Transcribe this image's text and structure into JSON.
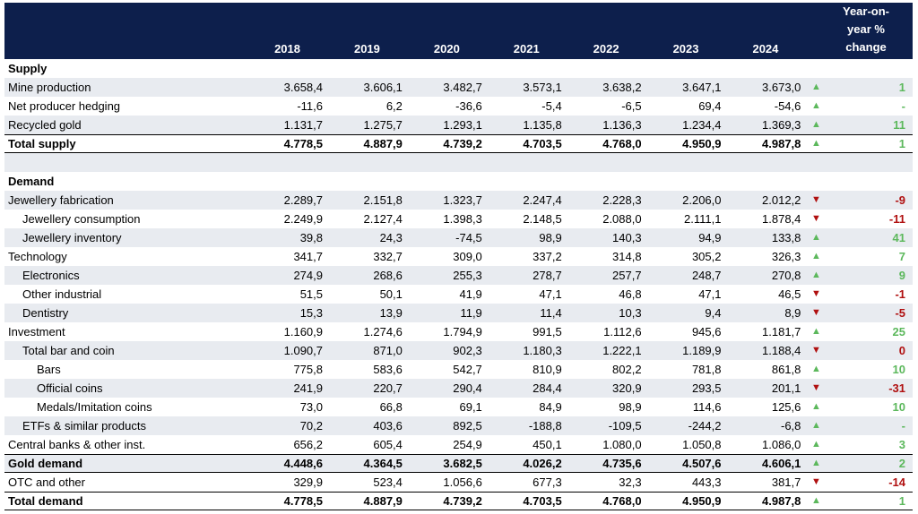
{
  "table": {
    "columns": [
      "2018",
      "2019",
      "2020",
      "2021",
      "2022",
      "2023",
      "2024"
    ],
    "change_header": "Year-on-year % change",
    "sections": [
      {
        "title": "Supply",
        "rows": [
          {
            "label": "Mine production",
            "values": [
              "3.658,4",
              "3.606,1",
              "3.482,7",
              "3.573,1",
              "3.638,2",
              "3.647,1",
              "3.673,0"
            ],
            "arrow": "▲",
            "change": "1"
          },
          {
            "label": "Net producer hedging",
            "values": [
              "-11,6",
              "6,2",
              "-36,6",
              "-5,4",
              "-6,5",
              "69,4",
              "-54,6"
            ],
            "arrow": "▲",
            "change": "-"
          },
          {
            "label": "Recycled gold",
            "values": [
              "1.131,7",
              "1.275,7",
              "1.293,1",
              "1.135,8",
              "1.136,3",
              "1.234,4",
              "1.369,3"
            ],
            "arrow": "▲",
            "change": "11"
          },
          {
            "label": "Total supply",
            "values": [
              "4.778,5",
              "4.887,9",
              "4.739,2",
              "4.703,5",
              "4.768,0",
              "4.950,9",
              "4.987,8"
            ],
            "arrow": "▲",
            "change": "1"
          }
        ]
      },
      {
        "title": "Demand",
        "rows": [
          {
            "label": "Jewellery fabrication",
            "values": [
              "2.289,7",
              "2.151,8",
              "1.323,7",
              "2.247,4",
              "2.228,3",
              "2.206,0",
              "2.012,2"
            ],
            "arrow": "▼",
            "change": "-9"
          },
          {
            "label": "Jewellery consumption",
            "values": [
              "2.249,9",
              "2.127,4",
              "1.398,3",
              "2.148,5",
              "2.088,0",
              "2.111,1",
              "1.878,4"
            ],
            "arrow": "▼",
            "change": "-11"
          },
          {
            "label": "Jewellery inventory",
            "values": [
              "39,8",
              "24,3",
              "-74,5",
              "98,9",
              "140,3",
              "94,9",
              "133,8"
            ],
            "arrow": "▲",
            "change": "41"
          },
          {
            "label": "Technology",
            "values": [
              "341,7",
              "332,7",
              "309,0",
              "337,2",
              "314,8",
              "305,2",
              "326,3"
            ],
            "arrow": "▲",
            "change": "7"
          },
          {
            "label": "Electronics",
            "values": [
              "274,9",
              "268,6",
              "255,3",
              "278,7",
              "257,7",
              "248,7",
              "270,8"
            ],
            "arrow": "▲",
            "change": "9"
          },
          {
            "label": "Other industrial",
            "values": [
              "51,5",
              "50,1",
              "41,9",
              "47,1",
              "46,8",
              "47,1",
              "46,5"
            ],
            "arrow": "▼",
            "change": "-1"
          },
          {
            "label": "Dentistry",
            "values": [
              "15,3",
              "13,9",
              "11,9",
              "11,4",
              "10,3",
              "9,4",
              "8,9"
            ],
            "arrow": "▼",
            "change": "-5"
          },
          {
            "label": "Investment",
            "values": [
              "1.160,9",
              "1.274,6",
              "1.794,9",
              "991,5",
              "1.112,6",
              "945,6",
              "1.181,7"
            ],
            "arrow": "▲",
            "change": "25"
          },
          {
            "label": "Total bar and coin",
            "values": [
              "1.090,7",
              "871,0",
              "902,3",
              "1.180,3",
              "1.222,1",
              "1.189,9",
              "1.188,4"
            ],
            "arrow": "▼",
            "change": "0"
          },
          {
            "label": "Bars",
            "values": [
              "775,8",
              "583,6",
              "542,7",
              "810,9",
              "802,2",
              "781,8",
              "861,8"
            ],
            "arrow": "▲",
            "change": "10"
          },
          {
            "label": "Official coins",
            "values": [
              "241,9",
              "220,7",
              "290,4",
              "284,4",
              "320,9",
              "293,5",
              "201,1"
            ],
            "arrow": "▼",
            "change": "-31"
          },
          {
            "label": "Medals/Imitation coins",
            "values": [
              "73,0",
              "66,8",
              "69,1",
              "84,9",
              "98,9",
              "114,6",
              "125,6"
            ],
            "arrow": "▲",
            "change": "10"
          },
          {
            "label": "ETFs & similar products",
            "values": [
              "70,2",
              "403,6",
              "892,5",
              "-188,8",
              "-109,5",
              "-244,2",
              "-6,8"
            ],
            "arrow": "▲",
            "change": "-"
          },
          {
            "label": "Central banks & other inst.",
            "values": [
              "656,2",
              "605,4",
              "254,9",
              "450,1",
              "1.080,0",
              "1.050,8",
              "1.086,0"
            ],
            "arrow": "▲",
            "change": "3"
          },
          {
            "label": "Gold demand",
            "values": [
              "4.448,6",
              "4.364,5",
              "3.682,5",
              "4.026,2",
              "4.735,6",
              "4.507,6",
              "4.606,1"
            ],
            "arrow": "▲",
            "change": "2"
          },
          {
            "label": "OTC and other",
            "values": [
              "329,9",
              "523,4",
              "1.056,6",
              "677,3",
              "32,3",
              "443,3",
              "381,7"
            ],
            "arrow": "▼",
            "change": "-14"
          },
          {
            "label": "Total demand",
            "values": [
              "4.778,5",
              "4.887,9",
              "4.739,2",
              "4.703,5",
              "4.768,0",
              "4.950,9",
              "4.987,8"
            ],
            "arrow": "▲",
            "change": "1"
          }
        ]
      }
    ]
  }
}
